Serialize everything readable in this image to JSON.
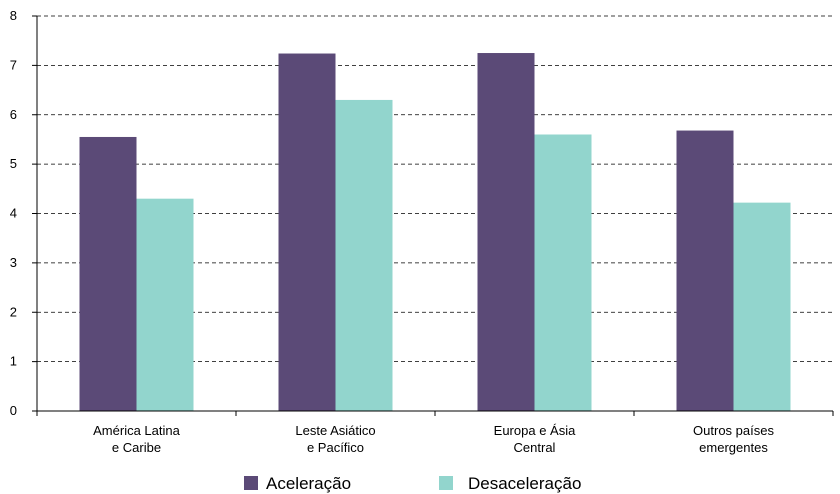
{
  "chart_data": {
    "type": "bar",
    "categories": [
      [
        "América Latina",
        "e Caribe"
      ],
      [
        "Leste Asiático",
        "e Pacífico"
      ],
      [
        "Europa e Ásia",
        "Central"
      ],
      [
        "Outros países",
        "emergentes"
      ]
    ],
    "series": [
      {
        "name": "Aceleração",
        "color": "#5b4a77",
        "values": [
          5.55,
          7.24,
          7.25,
          5.68
        ]
      },
      {
        "name": "Desaceleração",
        "color": "#92d5cd",
        "values": [
          4.3,
          6.3,
          5.6,
          4.22
        ]
      }
    ],
    "ylim": [
      0,
      8
    ],
    "yticks": [
      "0",
      "1",
      "2",
      "3",
      "4",
      "5",
      "6",
      "7",
      "8"
    ],
    "grid": true,
    "legend_position": "bottom"
  }
}
